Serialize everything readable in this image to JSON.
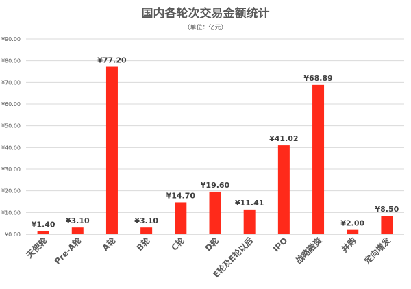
{
  "chart_data": {
    "type": "bar",
    "title": "国内各轮次交易金额统计",
    "subtitle": "（单位：亿元）",
    "categories": [
      "天使轮",
      "Pre-A轮",
      "A轮",
      "B轮",
      "C轮",
      "D轮",
      "E轮及E轮以后",
      "IPO",
      "战略融资",
      "并购",
      "定向增发"
    ],
    "values": [
      1.4,
      3.1,
      77.2,
      3.1,
      14.7,
      19.6,
      11.41,
      41.02,
      68.89,
      2.0,
      8.5
    ],
    "data_labels": [
      "¥1.40",
      "¥3.10",
      "¥77.20",
      "¥3.10",
      "¥14.70",
      "¥19.60",
      "¥11.41",
      "¥41.02",
      "¥68.89",
      "¥2.00",
      "¥8.50"
    ],
    "y_ticks": [
      "¥0.00",
      "¥10.00",
      "¥20.00",
      "¥30.00",
      "¥40.00",
      "¥50.00",
      "¥60.00",
      "¥70.00",
      "¥80.00",
      "¥90.00"
    ],
    "ylim": [
      0,
      90
    ],
    "grid": true,
    "bar_color": "#ff2a1a",
    "xlabel": "",
    "ylabel": ""
  }
}
